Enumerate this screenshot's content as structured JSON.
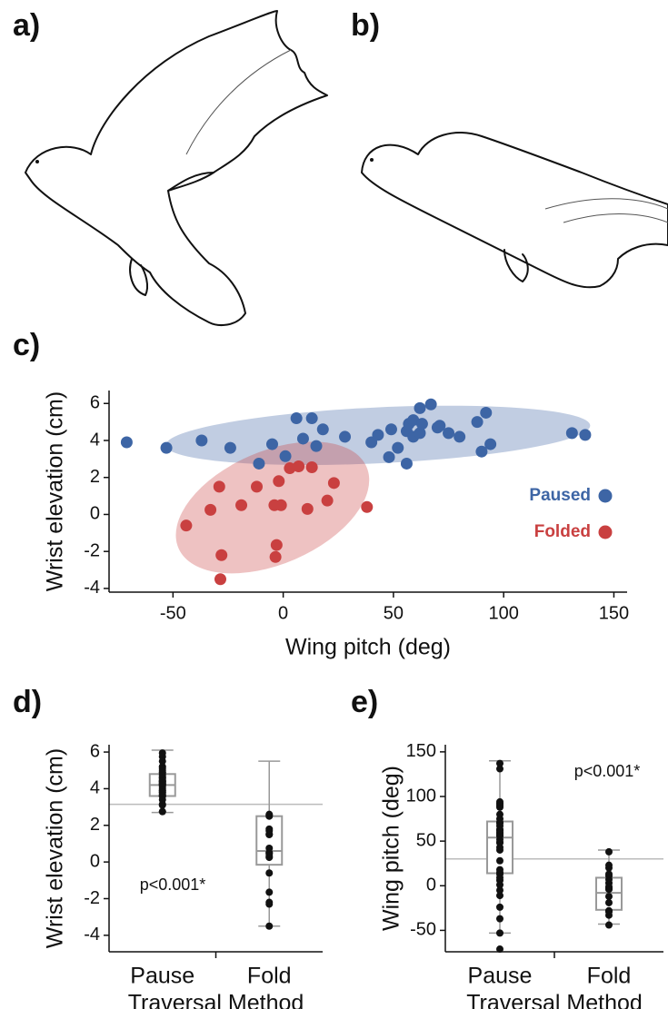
{
  "panel_labels": [
    "a)",
    "b)",
    "c)",
    "d)",
    "e)"
  ],
  "chart_data": [
    {
      "type": "scatter",
      "xlabel": "Wing pitch (deg)",
      "ylabel": "Wrist elevation (cm)",
      "xlim": [
        -79,
        156
      ],
      "ylim": [
        -4.2,
        6.7
      ],
      "xticks": [
        -50,
        0,
        50,
        100,
        150
      ],
      "yticks": [
        -4,
        -2,
        0,
        2,
        4,
        6
      ],
      "legend": "lower right",
      "series": [
        {
          "name": "Paused",
          "color": "#3d65a5",
          "x": [
            -71,
            -53,
            -37,
            -24,
            -11,
            -5,
            1,
            6,
            13,
            9,
            15,
            18,
            28,
            40,
            43,
            49,
            48,
            52,
            56,
            56,
            57,
            59,
            59,
            62,
            62,
            63,
            67,
            70,
            71,
            75,
            80,
            88,
            92,
            90,
            94,
            131,
            137
          ],
          "values": [
            3.9,
            3.6,
            4.0,
            3.6,
            2.75,
            3.8,
            3.15,
            5.2,
            5.2,
            4.1,
            3.7,
            4.6,
            4.2,
            3.9,
            4.3,
            4.6,
            3.1,
            3.6,
            4.5,
            2.75,
            4.9,
            5.1,
            4.2,
            5.75,
            4.4,
            4.9,
            5.95,
            4.7,
            4.8,
            4.4,
            4.2,
            5.0,
            5.5,
            3.4,
            3.8,
            4.4,
            4.3
          ]
        },
        {
          "name": "Folded",
          "color": "#c94040",
          "x": [
            -44,
            -33,
            -29,
            -28,
            -28.5,
            -19,
            -12,
            -4,
            -1,
            -3,
            -3.5,
            -2,
            3,
            7,
            11,
            13,
            20,
            23,
            38
          ],
          "values": [
            -0.6,
            0.25,
            1.5,
            -2.2,
            -3.5,
            0.5,
            1.5,
            0.5,
            0.5,
            -1.65,
            -2.3,
            1.8,
            2.5,
            2.6,
            0.3,
            2.55,
            0.75,
            1.7,
            0.4
          ]
        }
      ]
    },
    {
      "type": "box",
      "xlabel": "Traversal Method",
      "ylabel": "Wrist elevation (cm)",
      "annotation": "p<0.001*",
      "categories": [
        "Pause",
        "Fold"
      ],
      "ylim": [
        -4.9,
        6.4
      ],
      "yticks": [
        -4,
        -2,
        0,
        2,
        4,
        6
      ],
      "reference": 3.15,
      "whisker_low": [
        2.7,
        -3.5
      ],
      "q1": [
        3.6,
        -0.15
      ],
      "median": [
        4.2,
        0.6
      ],
      "q3": [
        4.8,
        2.5
      ],
      "whisker_high": [
        6.1,
        5.5
      ]
    },
    {
      "type": "box",
      "xlabel": "Traversal Method",
      "ylabel": "Wing pitch (deg)",
      "annotation": "p<0.001*",
      "categories": [
        "Pause",
        "Fold"
      ],
      "ylim": [
        -74,
        158
      ],
      "yticks": [
        -50,
        0,
        50,
        100,
        150
      ],
      "reference": 30,
      "whisker_low": [
        -53,
        -43
      ],
      "q1": [
        14,
        -27
      ],
      "median": [
        54,
        -8
      ],
      "q3": [
        72,
        9
      ],
      "whisker_high": [
        140,
        40
      ]
    }
  ]
}
